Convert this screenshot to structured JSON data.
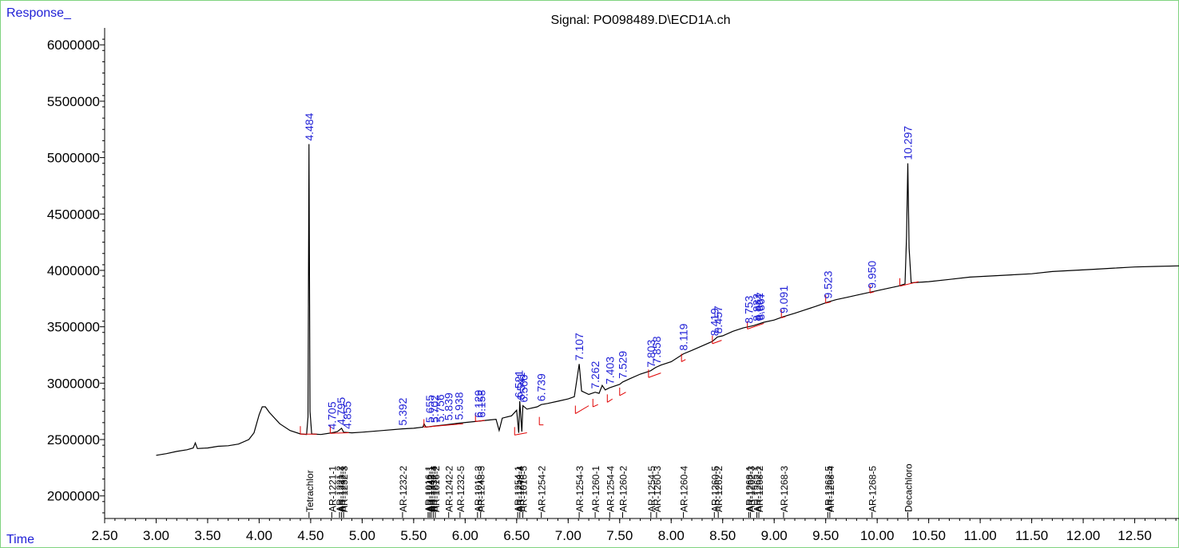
{
  "chart_data": {
    "type": "line",
    "title": "Signal: PO098489.D\\ECD1A.ch",
    "ylabel": "Response_",
    "xlabel": "Time",
    "xlim": [
      2.5,
      12.93
    ],
    "ylim": [
      1800000,
      6150000
    ],
    "x_ticks": [
      "2.50",
      "3.00",
      "3.50",
      "4.00",
      "4.50",
      "5.00",
      "5.50",
      "6.00",
      "6.50",
      "7.00",
      "7.50",
      "8.00",
      "8.50",
      "9.00",
      "9.50",
      "10.00",
      "10.50",
      "11.00",
      "11.50",
      "12.00",
      "12.50"
    ],
    "y_ticks": [
      "2000000",
      "2500000",
      "3000000",
      "3500000",
      "4000000",
      "4500000",
      "5000000",
      "5500000",
      "6000000"
    ],
    "colors": {
      "trace": "#000000",
      "retention_labels": "#1f1fd6",
      "baseline": "#e00000",
      "axis": "#000000"
    },
    "series": [
      {
        "points": [
          [
            3.0,
            2360000
          ],
          [
            3.1,
            2375000
          ],
          [
            3.2,
            2395000
          ],
          [
            3.3,
            2410000
          ],
          [
            3.36,
            2425000
          ],
          [
            3.38,
            2470000
          ],
          [
            3.4,
            2420000
          ],
          [
            3.5,
            2425000
          ],
          [
            3.6,
            2440000
          ],
          [
            3.7,
            2445000
          ],
          [
            3.8,
            2460000
          ],
          [
            3.9,
            2500000
          ],
          [
            3.95,
            2560000
          ],
          [
            4.0,
            2720000
          ],
          [
            4.03,
            2790000
          ],
          [
            4.06,
            2790000
          ],
          [
            4.1,
            2740000
          ],
          [
            4.2,
            2640000
          ],
          [
            4.3,
            2580000
          ],
          [
            4.4,
            2550000
          ],
          [
            4.46,
            2545000
          ],
          [
            4.474,
            2700000
          ],
          [
            4.484,
            5120000
          ],
          [
            4.494,
            2750000
          ],
          [
            4.51,
            2550000
          ],
          [
            4.6,
            2545000
          ],
          [
            4.705,
            2560000
          ],
          [
            4.76,
            2570000
          ],
          [
            4.8,
            2600000
          ],
          [
            4.82,
            2565000
          ],
          [
            4.9,
            2560000
          ],
          [
            5.0,
            2565000
          ],
          [
            5.2,
            2580000
          ],
          [
            5.392,
            2595000
          ],
          [
            5.5,
            2600000
          ],
          [
            5.59,
            2610000
          ],
          [
            5.6,
            2640000
          ],
          [
            5.62,
            2610000
          ],
          [
            5.7,
            2620000
          ],
          [
            5.8,
            2630000
          ],
          [
            5.938,
            2645000
          ],
          [
            6.1,
            2660000
          ],
          [
            6.2,
            2670000
          ],
          [
            6.3,
            2680000
          ],
          [
            6.33,
            2580000
          ],
          [
            6.36,
            2690000
          ],
          [
            6.45,
            2710000
          ],
          [
            6.5,
            2760000
          ],
          [
            6.52,
            2560000
          ],
          [
            6.53,
            2840000
          ],
          [
            6.55,
            2570000
          ],
          [
            6.56,
            2800000
          ],
          [
            6.6,
            2770000
          ],
          [
            6.7,
            2790000
          ],
          [
            6.739,
            2810000
          ],
          [
            6.8,
            2820000
          ],
          [
            6.9,
            2840000
          ],
          [
            7.0,
            2860000
          ],
          [
            7.06,
            2880000
          ],
          [
            7.107,
            3170000
          ],
          [
            7.13,
            2930000
          ],
          [
            7.2,
            2900000
          ],
          [
            7.262,
            2920000
          ],
          [
            7.3,
            2910000
          ],
          [
            7.33,
            2980000
          ],
          [
            7.36,
            2940000
          ],
          [
            7.403,
            2960000
          ],
          [
            7.5,
            2990000
          ],
          [
            7.529,
            3010000
          ],
          [
            7.6,
            3040000
          ],
          [
            7.7,
            3080000
          ],
          [
            7.8,
            3110000
          ],
          [
            7.85,
            3140000
          ],
          [
            7.9,
            3160000
          ],
          [
            8.0,
            3190000
          ],
          [
            8.119,
            3260000
          ],
          [
            8.2,
            3290000
          ],
          [
            8.3,
            3330000
          ],
          [
            8.4,
            3370000
          ],
          [
            8.449,
            3410000
          ],
          [
            8.5,
            3420000
          ],
          [
            8.6,
            3460000
          ],
          [
            8.7,
            3490000
          ],
          [
            8.8,
            3510000
          ],
          [
            8.9,
            3540000
          ],
          [
            9.0,
            3560000
          ],
          [
            9.091,
            3590000
          ],
          [
            9.2,
            3620000
          ],
          [
            9.3,
            3650000
          ],
          [
            9.4,
            3680000
          ],
          [
            9.523,
            3720000
          ],
          [
            9.6,
            3740000
          ],
          [
            9.7,
            3760000
          ],
          [
            9.8,
            3780000
          ],
          [
            9.95,
            3810000
          ],
          [
            10.1,
            3840000
          ],
          [
            10.2,
            3860000
          ],
          [
            10.27,
            3880000
          ],
          [
            10.285,
            4300000
          ],
          [
            10.297,
            4950000
          ],
          [
            10.31,
            4200000
          ],
          [
            10.33,
            3890000
          ],
          [
            10.5,
            3900000
          ],
          [
            10.7,
            3920000
          ],
          [
            10.9,
            3940000
          ],
          [
            11.1,
            3950000
          ],
          [
            11.3,
            3960000
          ],
          [
            11.5,
            3970000
          ],
          [
            11.7,
            3990000
          ],
          [
            11.9,
            4000000
          ],
          [
            12.1,
            4010000
          ],
          [
            12.3,
            4020000
          ],
          [
            12.5,
            4030000
          ],
          [
            12.7,
            4035000
          ],
          [
            12.93,
            4040000
          ]
        ]
      }
    ],
    "peak_labels": [
      {
        "text": "4.484",
        "x": 4.484,
        "y": 5120000
      },
      {
        "text": "4.705",
        "x": 4.705,
        "y": 2560000
      },
      {
        "text": "4.795",
        "x": 4.795,
        "y": 2600000
      },
      {
        "text": "4.855",
        "x": 4.855,
        "y": 2565000
      },
      {
        "text": "5.392",
        "x": 5.392,
        "y": 2595000
      },
      {
        "text": "5.655",
        "x": 5.655,
        "y": 2620000
      },
      {
        "text": "5.702",
        "x": 5.702,
        "y": 2620000
      },
      {
        "text": "5.756",
        "x": 5.756,
        "y": 2625000
      },
      {
        "text": "5.839",
        "x": 5.839,
        "y": 2640000
      },
      {
        "text": "5.938",
        "x": 5.938,
        "y": 2645000
      },
      {
        "text": "6.129",
        "x": 6.129,
        "y": 2665000
      },
      {
        "text": "6.158",
        "x": 6.158,
        "y": 2665000
      },
      {
        "text": "6.521",
        "x": 6.521,
        "y": 2840000
      },
      {
        "text": "6.541",
        "x": 6.541,
        "y": 2820000
      },
      {
        "text": "6.566",
        "x": 6.566,
        "y": 2800000
      },
      {
        "text": "6.739",
        "x": 6.739,
        "y": 2810000
      },
      {
        "text": "7.107",
        "x": 7.107,
        "y": 3170000
      },
      {
        "text": "7.262",
        "x": 7.262,
        "y": 2920000
      },
      {
        "text": "7.403",
        "x": 7.403,
        "y": 2960000
      },
      {
        "text": "7.529",
        "x": 7.529,
        "y": 3010000
      },
      {
        "text": "7.803",
        "x": 7.803,
        "y": 3110000
      },
      {
        "text": "7.858",
        "x": 7.858,
        "y": 3140000
      },
      {
        "text": "8.119",
        "x": 8.119,
        "y": 3260000
      },
      {
        "text": "8.419",
        "x": 8.419,
        "y": 3390000
      },
      {
        "text": "8.457",
        "x": 8.457,
        "y": 3410000
      },
      {
        "text": "8.753",
        "x": 8.753,
        "y": 3500000
      },
      {
        "text": "8.832",
        "x": 8.832,
        "y": 3520000
      },
      {
        "text": "8.851",
        "x": 8.851,
        "y": 3525000
      },
      {
        "text": "8.867",
        "x": 8.867,
        "y": 3530000
      },
      {
        "text": "9.091",
        "x": 9.091,
        "y": 3590000
      },
      {
        "text": "9.523",
        "x": 9.523,
        "y": 3720000
      },
      {
        "text": "9.950",
        "x": 9.95,
        "y": 3810000
      },
      {
        "text": "10.297",
        "x": 10.297,
        "y": 4950000
      }
    ],
    "baseline_segments": [
      [
        4.4,
        2548000,
        4.56,
        2548000
      ],
      [
        4.69,
        2555000,
        4.87,
        2560000
      ],
      [
        5.6,
        2610000,
        5.98,
        2640000
      ],
      [
        6.1,
        2660000,
        6.19,
        2670000
      ],
      [
        6.48,
        2540000,
        6.6,
        2560000
      ],
      [
        6.72,
        2630000,
        6.76,
        2630000
      ],
      [
        7.07,
        2730000,
        7.2,
        2800000
      ],
      [
        7.24,
        2790000,
        7.29,
        2810000
      ],
      [
        7.38,
        2830000,
        7.43,
        2860000
      ],
      [
        7.5,
        2890000,
        7.56,
        2920000
      ],
      [
        7.78,
        3050000,
        7.9,
        3090000
      ],
      [
        8.1,
        3190000,
        8.14,
        3210000
      ],
      [
        8.4,
        3350000,
        8.49,
        3380000
      ],
      [
        8.74,
        3480000,
        8.9,
        3530000
      ],
      [
        9.07,
        3580000,
        9.11,
        3590000
      ],
      [
        9.5,
        3710000,
        9.55,
        3720000
      ],
      [
        9.93,
        3800000,
        9.97,
        3810000
      ],
      [
        10.22,
        3860000,
        10.4,
        3900000
      ]
    ],
    "compound_labels": [
      {
        "text": "Tetrachlor",
        "x": 4.484
      },
      {
        "text": "AR-1221-1",
        "x": 4.705
      },
      {
        "text": "AR-1221-2",
        "x": 4.78
      },
      {
        "text": "AR-1232-1",
        "x": 4.8
      },
      {
        "text": "AR-1232-3",
        "x": 4.82
      },
      {
        "text": "AR-1232-2",
        "x": 5.392
      },
      {
        "text": "AR-1016-1",
        "x": 5.64
      },
      {
        "text": "AR-1242-1",
        "x": 5.655
      },
      {
        "text": "AR-1248-1",
        "x": 5.67
      },
      {
        "text": "AR-1232-4",
        "x": 5.69
      },
      {
        "text": "AR-1016-2",
        "x": 5.71
      },
      {
        "text": "AR-1242-2",
        "x": 5.84
      },
      {
        "text": "AR-1232-5",
        "x": 5.95
      },
      {
        "text": "AR-1016-3",
        "x": 6.12
      },
      {
        "text": "AR-1248-5",
        "x": 6.15
      },
      {
        "text": "AR-1254-1",
        "x": 6.51
      },
      {
        "text": "AR-1248-4",
        "x": 6.53
      },
      {
        "text": "AR-1016-5",
        "x": 6.56
      },
      {
        "text": "AR-1254-2",
        "x": 6.739
      },
      {
        "text": "AR-1254-3",
        "x": 7.107
      },
      {
        "text": "AR-1260-1",
        "x": 7.262
      },
      {
        "text": "AR-1254-4",
        "x": 7.403
      },
      {
        "text": "AR-1260-2",
        "x": 7.529
      },
      {
        "text": "AR-1254-5",
        "x": 7.803
      },
      {
        "text": "AR-1260-3",
        "x": 7.858
      },
      {
        "text": "AR-1260-4",
        "x": 8.119
      },
      {
        "text": "AR-1260-5",
        "x": 8.419
      },
      {
        "text": "AR-1262-2",
        "x": 8.457
      },
      {
        "text": "AR-1268-1",
        "x": 8.753
      },
      {
        "text": "AR-1262-3",
        "x": 8.77
      },
      {
        "text": "AR-1262-1",
        "x": 8.832
      },
      {
        "text": "AR-1268-2",
        "x": 8.851
      },
      {
        "text": "AR-1268-3",
        "x": 9.091
      },
      {
        "text": "AR-1262-5",
        "x": 9.52
      },
      {
        "text": "AR-1268-4",
        "x": 9.54
      },
      {
        "text": "AR-1268-5",
        "x": 9.95
      },
      {
        "text": "Decachloro",
        "x": 10.297
      }
    ]
  }
}
